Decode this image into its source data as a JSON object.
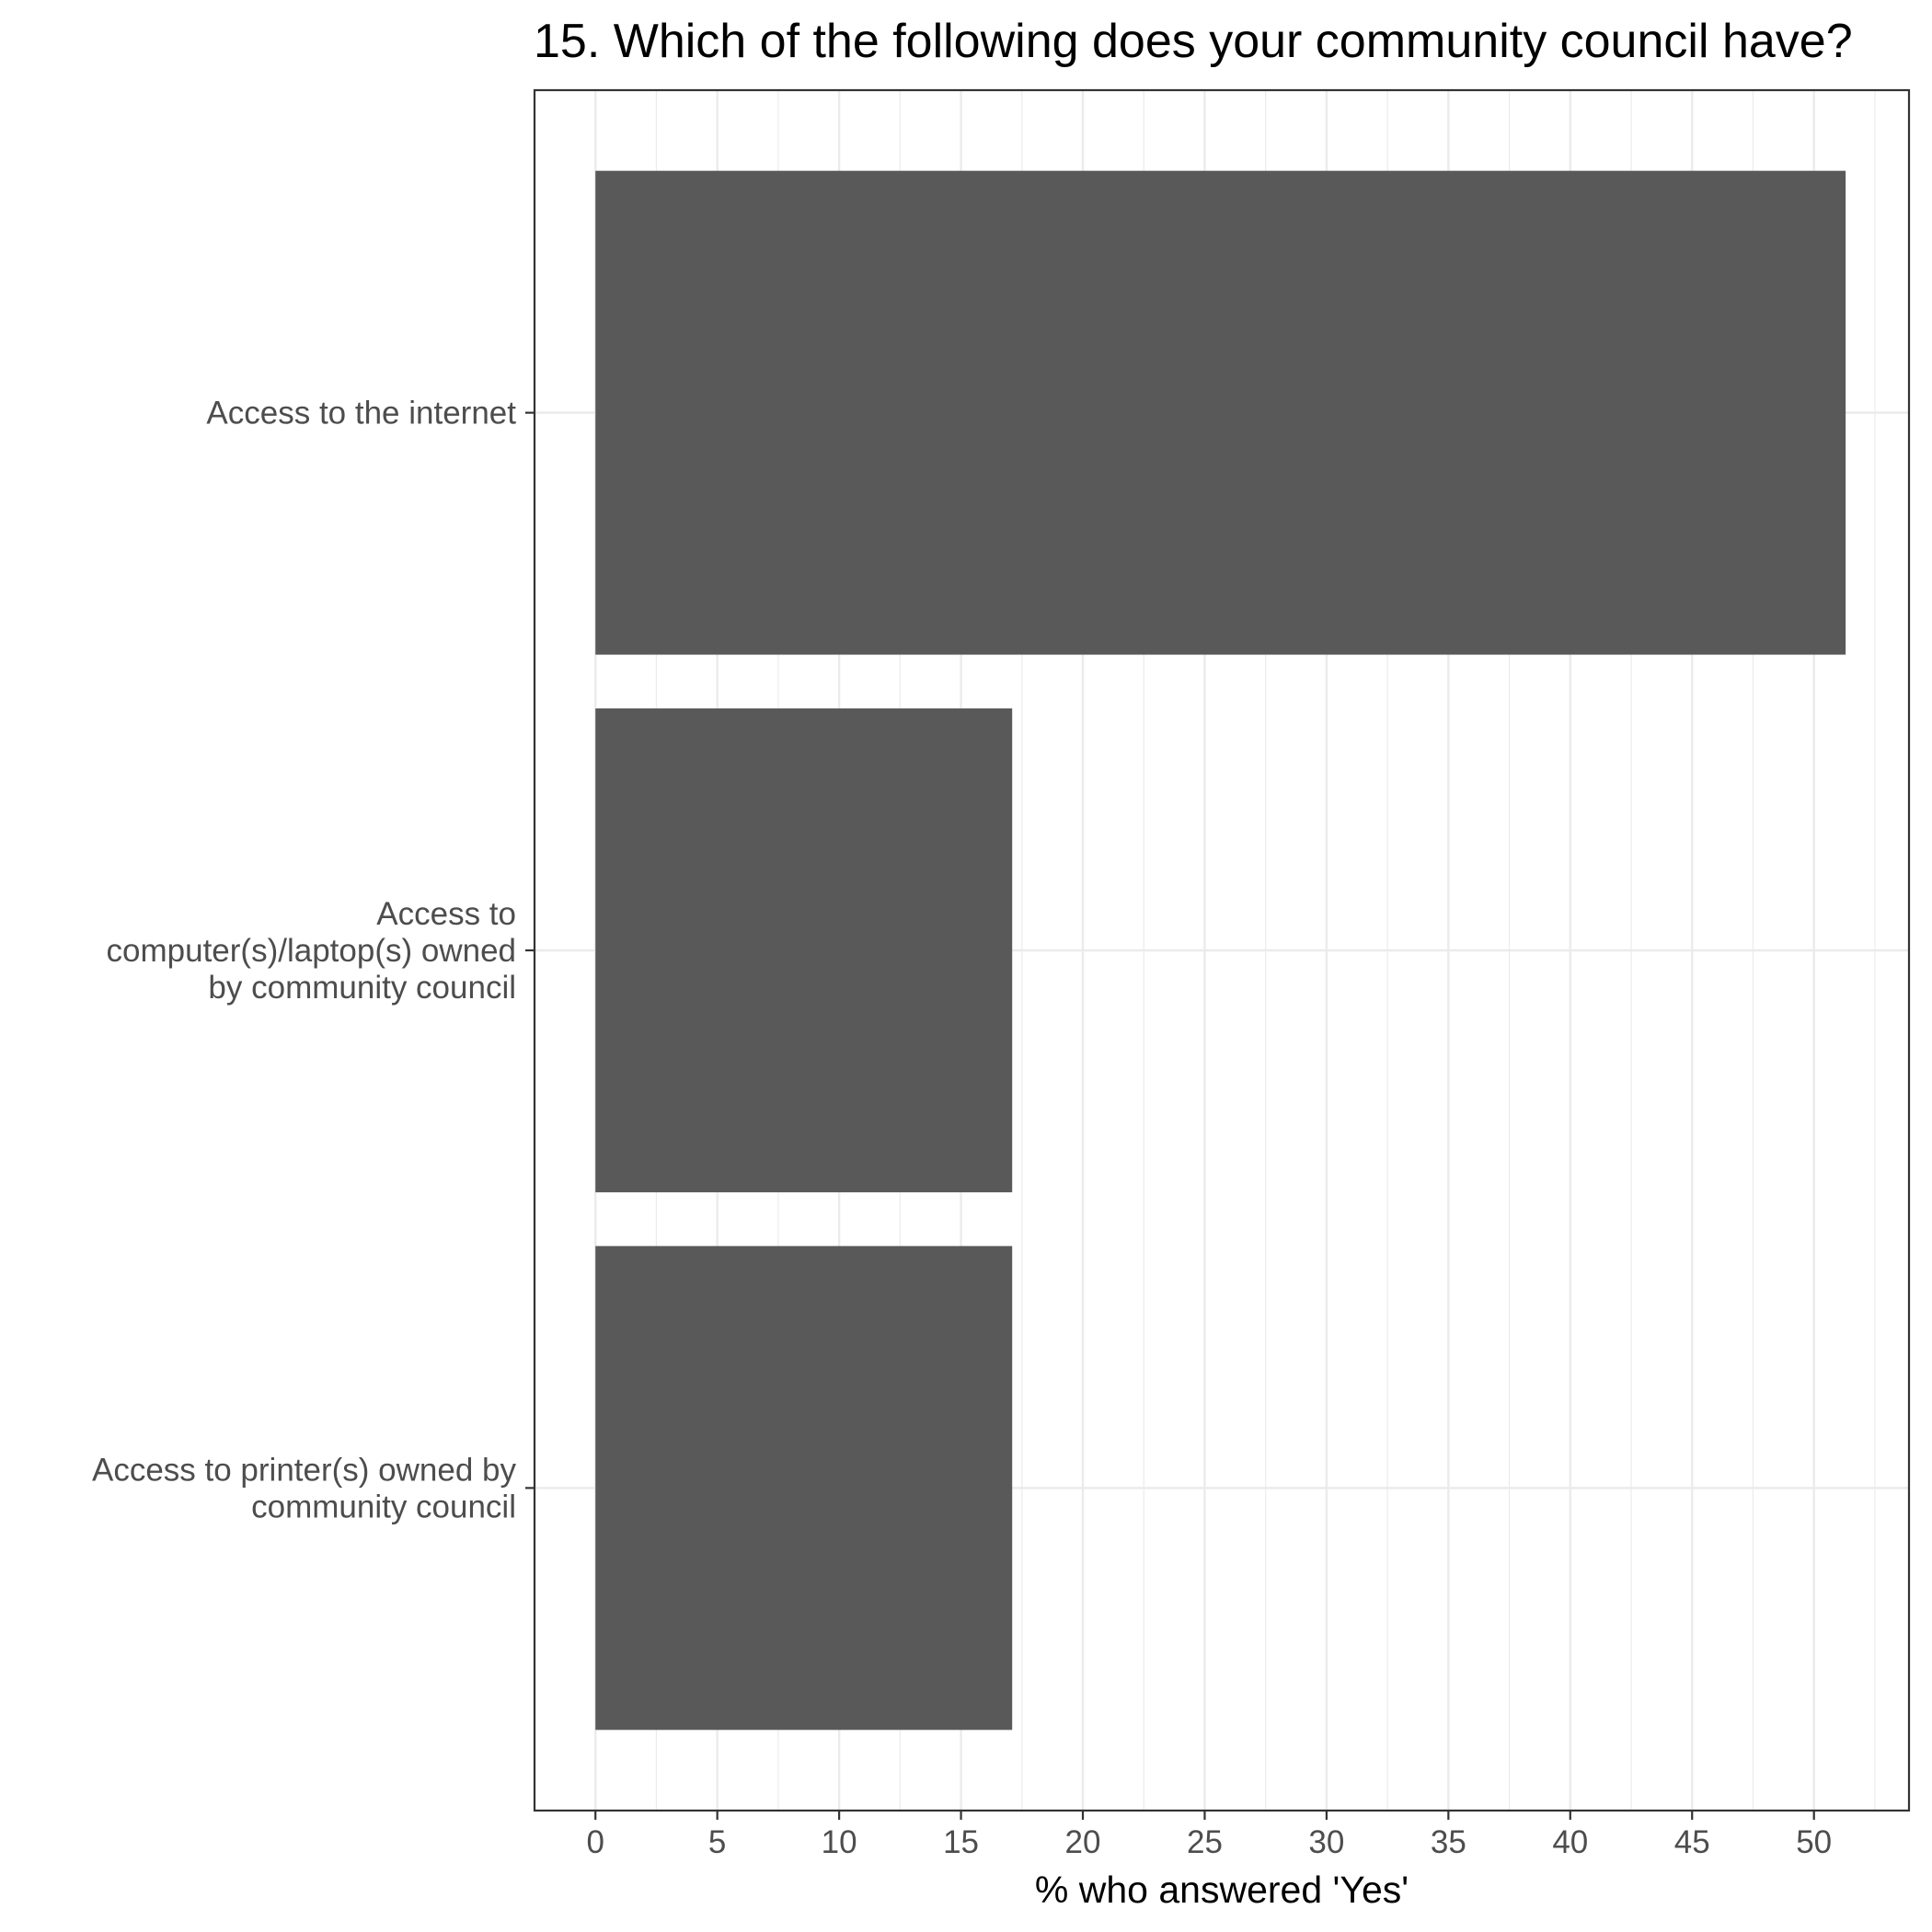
{
  "chart_data": {
    "type": "bar",
    "orientation": "horizontal",
    "title": "15. Which of the following does your community council have?",
    "xlabel": "% who answered 'Yes'",
    "ylabel": "",
    "categories": [
      "Access to the internet",
      "Access to computer(s)/laptop(s) owned by community council",
      "Access to printer(s) owned by community council"
    ],
    "category_label_lines": [
      [
        "Access to the internet"
      ],
      [
        "Access to",
        "computer(s)/laptop(s) owned",
        "by community council"
      ],
      [
        "Access to printer(s) owned by",
        "community council"
      ]
    ],
    "values": [
      51.3,
      17.1,
      17.1
    ],
    "xlim": [
      -2.5,
      53.9
    ],
    "xticks": [
      0,
      5,
      10,
      15,
      20,
      25,
      30,
      35,
      40,
      45,
      50
    ],
    "grid": true,
    "bar_color": "#595959",
    "grid_color": "#ebebeb",
    "border_color": "#333333"
  }
}
